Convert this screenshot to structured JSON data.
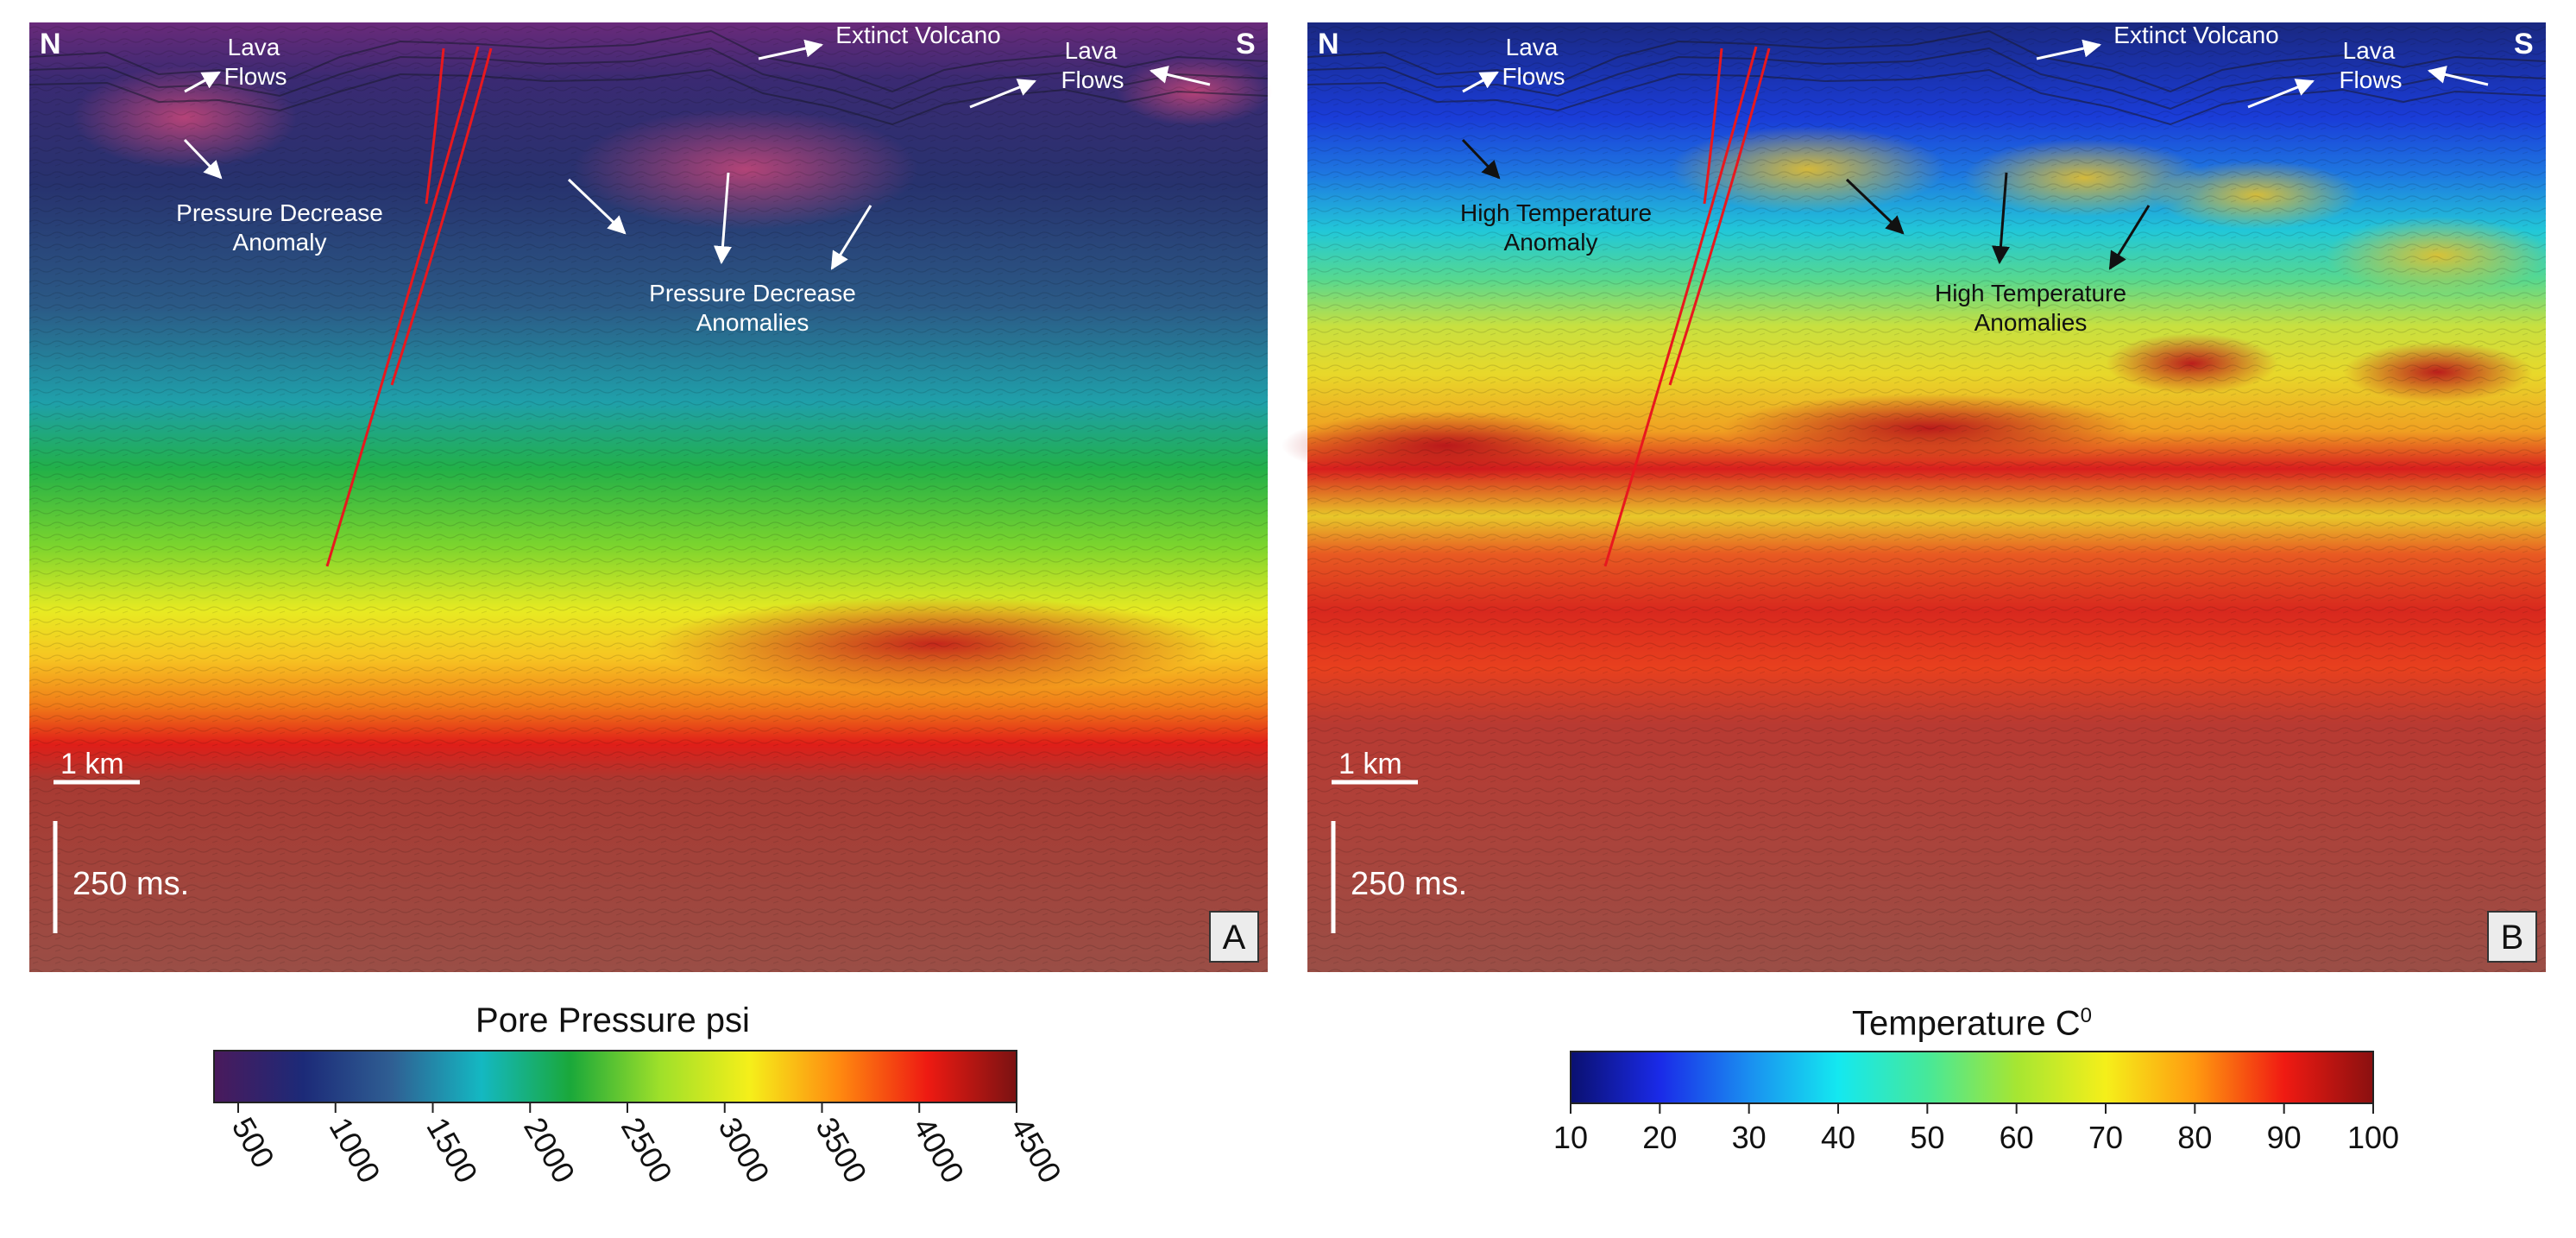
{
  "panels": [
    {
      "id": "A",
      "letter": "A",
      "north": "N",
      "south": "S",
      "scale_km": "1 km",
      "scale_ms": "250 ms.",
      "annotation_color": "#ffffff",
      "annotations": {
        "lava_left": [
          "Lava",
          "Flows"
        ],
        "volcano": "Extinct Volcano",
        "lava_right": [
          "Lava",
          "Flows"
        ],
        "anomaly_single": [
          "Pressure Decrease",
          "Anomaly"
        ],
        "anomaly_multi": [
          "Pressure Decrease",
          "Anomalies"
        ]
      },
      "colorbar": {
        "title": "Pore Pressure psi",
        "unit_sup": "",
        "ticks": [
          "500",
          "1000",
          "1500",
          "2000",
          "2500",
          "3000",
          "3500",
          "4000",
          "4500"
        ],
        "range": [
          500,
          4500
        ],
        "colors": [
          "#4a1a5c",
          "#1c2a78",
          "#2f5f93",
          "#14b8c2",
          "#1aa83a",
          "#9fe02a",
          "#f5ef1a",
          "#ff8a10",
          "#ee1a12",
          "#7a1212"
        ]
      }
    },
    {
      "id": "B",
      "letter": "B",
      "north": "N",
      "south": "S",
      "scale_km": "1 km",
      "scale_ms": "250 ms.",
      "annotation_color": "#111111",
      "annotations": {
        "lava_left": [
          "Lava",
          "Flows"
        ],
        "volcano": "Extinct Volcano",
        "lava_right": [
          "Lava",
          "Flows"
        ],
        "anomaly_single": [
          "High Temperature",
          "Anomaly"
        ],
        "anomaly_multi": [
          "High Temperature",
          "Anomalies"
        ]
      },
      "colorbar": {
        "title": "Temperature C",
        "unit_sup": "0",
        "ticks": [
          "10",
          "20",
          "30",
          "40",
          "50",
          "60",
          "70",
          "80",
          "90",
          "100"
        ],
        "range": [
          10,
          100
        ],
        "colors": [
          "#0a1070",
          "#1a2ae8",
          "#1a8ef0",
          "#14e8f0",
          "#46e89a",
          "#a6e632",
          "#f5ef1a",
          "#ff9a10",
          "#f01a12",
          "#8a1010"
        ]
      }
    }
  ]
}
